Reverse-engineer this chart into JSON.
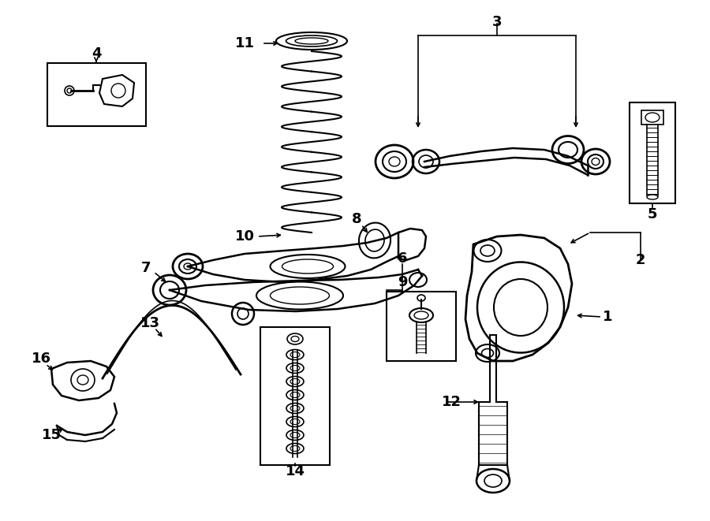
{
  "background_color": "#ffffff",
  "line_color": "#000000",
  "figsize": [
    9.0,
    6.61
  ],
  "dpi": 100,
  "xlim": [
    0,
    900
  ],
  "ylim": [
    0,
    661
  ]
}
